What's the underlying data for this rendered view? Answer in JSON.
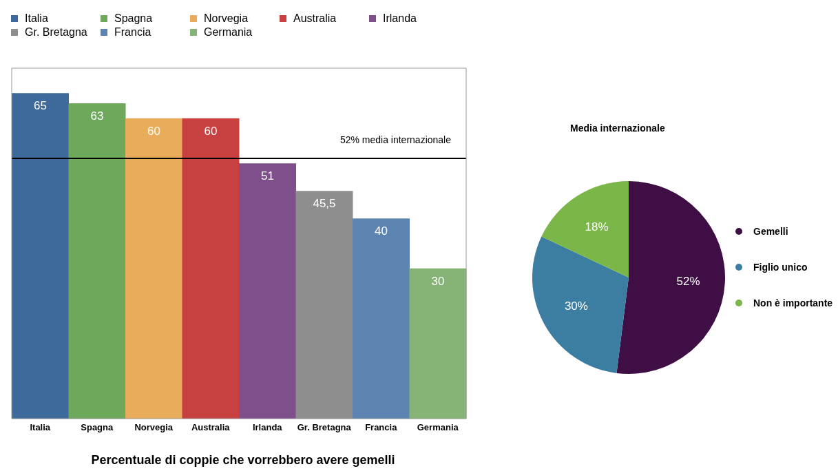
{
  "chart_data": [
    {
      "type": "bar",
      "title": "Percentuale di coppie che vorrebbero avere gemelli",
      "categories": [
        "Italia",
        "Spagna",
        "Norvegia",
        "Australia",
        "Irlanda",
        "Gr. Bretagna",
        "Francia",
        "Germania"
      ],
      "values": [
        65,
        63,
        60,
        60,
        51,
        45.5,
        40,
        30
      ],
      "value_labels": [
        "65",
        "63",
        "60",
        "60",
        "51",
        "45,5",
        "40",
        "30"
      ],
      "colors": [
        "#3d6a9a",
        "#6ea85a",
        "#e9ac5a",
        "#c84040",
        "#7e4f8a",
        "#8e8e8e",
        "#5d84b0",
        "#86b376"
      ],
      "ylim": [
        0,
        70
      ],
      "ref_lines": [
        {
          "axis": "y",
          "value": 52,
          "label": "52% media internazionale",
          "color": "#000000"
        }
      ],
      "legend": "top",
      "grid": false
    },
    {
      "type": "pie",
      "title": "Media internazionale",
      "categories": [
        "Gemelli",
        "Figlio unico",
        "Non è importante"
      ],
      "values": [
        52,
        30,
        18
      ],
      "value_labels": [
        "52%",
        "30%",
        "18%"
      ],
      "colors": [
        "#3e0e45",
        "#3b7ea1",
        "#7ab648"
      ],
      "legend": "right"
    }
  ]
}
